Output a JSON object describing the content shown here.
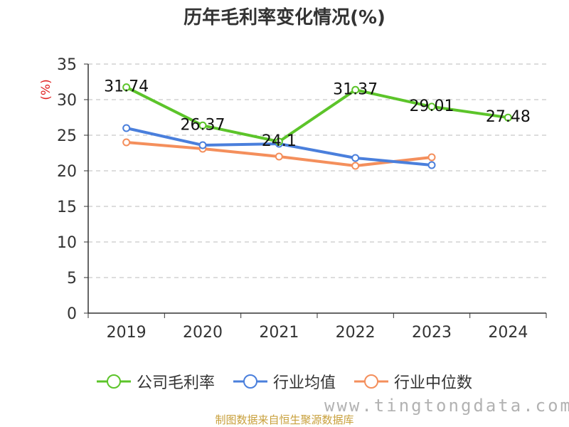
{
  "chart_data": {
    "type": "line",
    "title": "历年毛利率变化情况(%)",
    "ylabel": "(%)",
    "xlabel": "",
    "categories": [
      "2019",
      "2020",
      "2021",
      "2022",
      "2023",
      "2024"
    ],
    "ylim": [
      0,
      35
    ],
    "yticks": [
      0,
      5,
      10,
      15,
      20,
      25,
      30,
      35
    ],
    "grid": true,
    "legend_position": "bottom",
    "series": [
      {
        "name": "公司毛利率",
        "color": "#5cc42a",
        "values": [
          31.74,
          26.37,
          24.1,
          31.37,
          29.01,
          27.48
        ],
        "labels": [
          "31.74",
          "26.37",
          "24.1",
          "31.37",
          "29.01",
          "27.48"
        ]
      },
      {
        "name": "行业均值",
        "color": "#4a7fdc",
        "values": [
          26.0,
          23.6,
          23.8,
          21.8,
          20.8,
          null
        ],
        "labels": []
      },
      {
        "name": "行业中位数",
        "color": "#f48f5c",
        "values": [
          24.0,
          23.1,
          22.0,
          20.7,
          21.9,
          null
        ],
        "labels": []
      }
    ]
  },
  "footer": {
    "source": "制图数据来自恒生聚源数据库",
    "watermark": "www.tingtongdata.com"
  }
}
